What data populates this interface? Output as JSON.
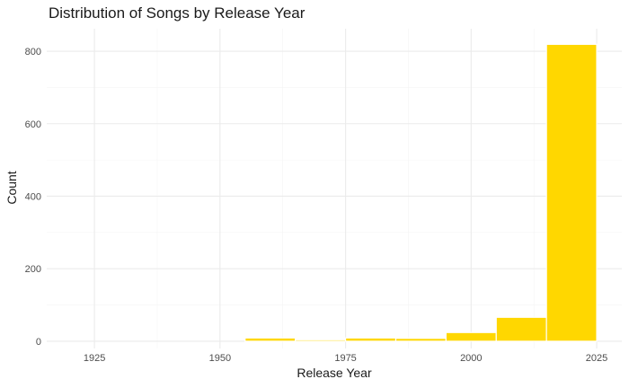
{
  "chart_data": {
    "type": "bar",
    "title": "Distribution of Songs by Release Year",
    "xlabel": "Release Year",
    "ylabel": "Count",
    "xlim": [
      1915.5,
      2030
    ],
    "ylim": [
      -20,
      862
    ],
    "x_ticks": [
      1925,
      1950,
      1975,
      2000,
      2025
    ],
    "y_ticks": [
      0,
      200,
      400,
      600,
      800
    ],
    "grid": true,
    "bar_color": "#FFD700",
    "bins": [
      {
        "start": 1925,
        "end": 1935,
        "value": 0
      },
      {
        "start": 1935,
        "end": 1945,
        "value": 0
      },
      {
        "start": 1945,
        "end": 1955,
        "value": 0
      },
      {
        "start": 1955,
        "end": 1965,
        "value": 9
      },
      {
        "start": 1965,
        "end": 1975,
        "value": 4
      },
      {
        "start": 1975,
        "end": 1985,
        "value": 9
      },
      {
        "start": 1985,
        "end": 1995,
        "value": 8
      },
      {
        "start": 1995,
        "end": 2005,
        "value": 24
      },
      {
        "start": 2005,
        "end": 2015,
        "value": 66
      },
      {
        "start": 2015,
        "end": 2025,
        "value": 819
      }
    ]
  }
}
